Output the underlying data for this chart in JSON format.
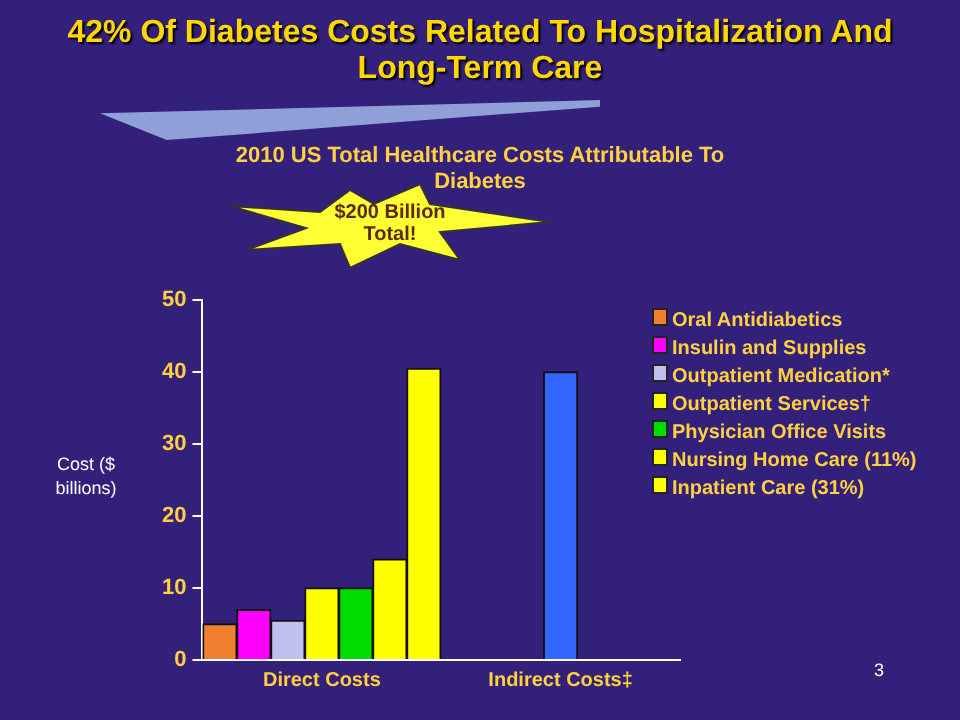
{
  "chart_data": {
    "type": "bar",
    "title": "42% Of Diabetes Costs Related To Hospitalization And Long-Term Care",
    "subtitle": "2010 US Total Healthcare Costs Attributable To Diabetes",
    "ylabel": "Cost ($ billions)",
    "categories": [
      "Direct Costs",
      "Indirect Costs‡"
    ],
    "series": [
      {
        "name": "Oral Antidiabetics",
        "color": "#f07f30",
        "values": [
          5,
          null
        ]
      },
      {
        "name": "Insulin and Supplies",
        "color": "#ff00ff",
        "values": [
          7,
          null
        ]
      },
      {
        "name": "Outpatient Medication*",
        "color": "#c0c0f0",
        "values": [
          5.5,
          null
        ]
      },
      {
        "name": "Outpatient Services†",
        "color": "#ffff00",
        "values": [
          10,
          null
        ]
      },
      {
        "name": "Physician Office Visits",
        "color": "#00dd00",
        "values": [
          10,
          null
        ]
      },
      {
        "name": "Nursing Home Care (11%)",
        "color": "#ffff00",
        "values": [
          14,
          null
        ]
      },
      {
        "name": "Inpatient Care (31%)",
        "color": "#ffff00",
        "values": [
          40.5,
          null
        ]
      },
      {
        "color": "#3366ff",
        "values": [
          null,
          40
        ]
      }
    ],
    "ylim": [
      0,
      50
    ],
    "yticks": [
      0,
      10,
      20,
      30,
      40,
      50
    ],
    "grid": false,
    "legend": "right",
    "annotations": [
      "$200 Billion Total!",
      "3"
    ]
  }
}
